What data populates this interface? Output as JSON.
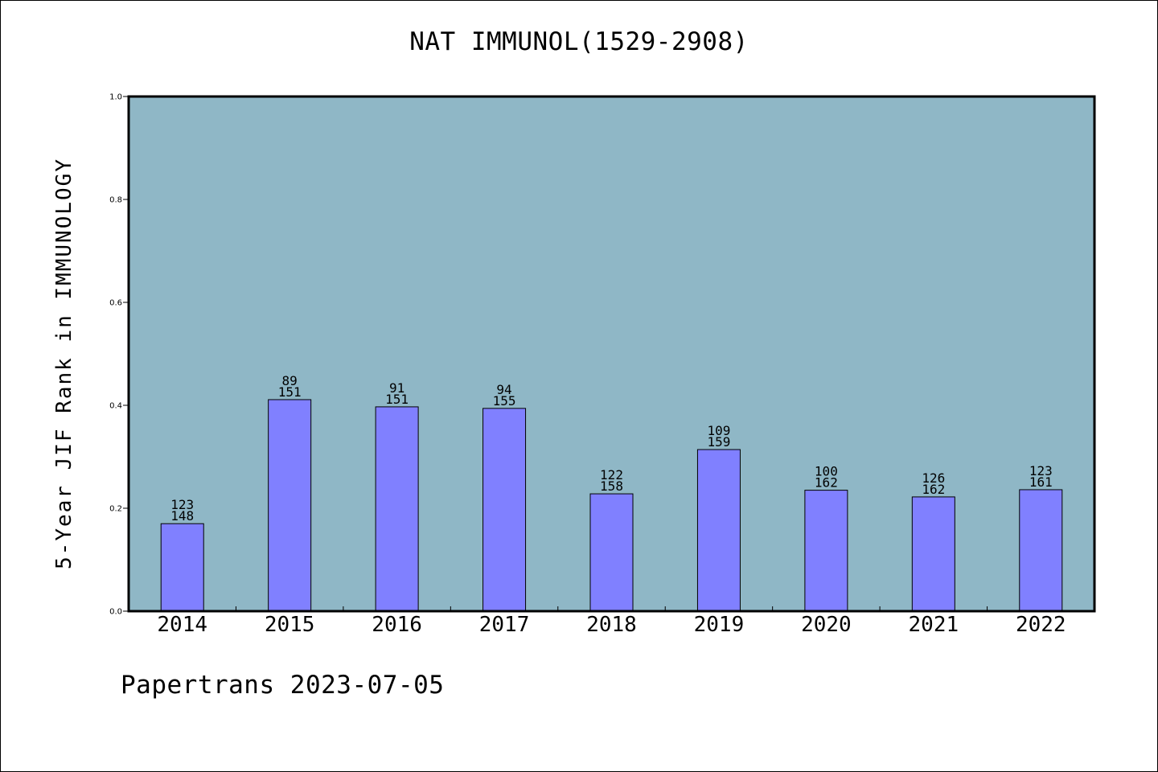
{
  "title": "NAT IMMUNOL(1529-2908)",
  "footer": "Papertrans 2023-07-05",
  "colors": {
    "plot_background": "#8fb7c6",
    "bar_fill": "#8080ff",
    "bar_stroke": "#000000",
    "axis": "#000000"
  },
  "chart_data": {
    "type": "bar",
    "title": "NAT IMMUNOL(1529-2908)",
    "xlabel": "",
    "ylabel": "5-Year JIF Rank in IMMUNOLOGY",
    "ylim": [
      0,
      1.0
    ],
    "yticks": [
      "0.0",
      "0.2",
      "0.4",
      "0.6",
      "0.8",
      "1.0"
    ],
    "categories": [
      "2014",
      "2015",
      "2016",
      "2017",
      "2018",
      "2019",
      "2020",
      "2021",
      "2022"
    ],
    "values": [
      0.17,
      0.411,
      0.397,
      0.394,
      0.228,
      0.314,
      0.235,
      0.222,
      0.236
    ],
    "labels_top": [
      "123",
      "89",
      "91",
      "94",
      "122",
      "109",
      "100",
      "126",
      "123"
    ],
    "labels_bottom": [
      "148",
      "151",
      "151",
      "155",
      "158",
      "159",
      "162",
      "162",
      "161"
    ],
    "grid": false,
    "legend": "none"
  }
}
